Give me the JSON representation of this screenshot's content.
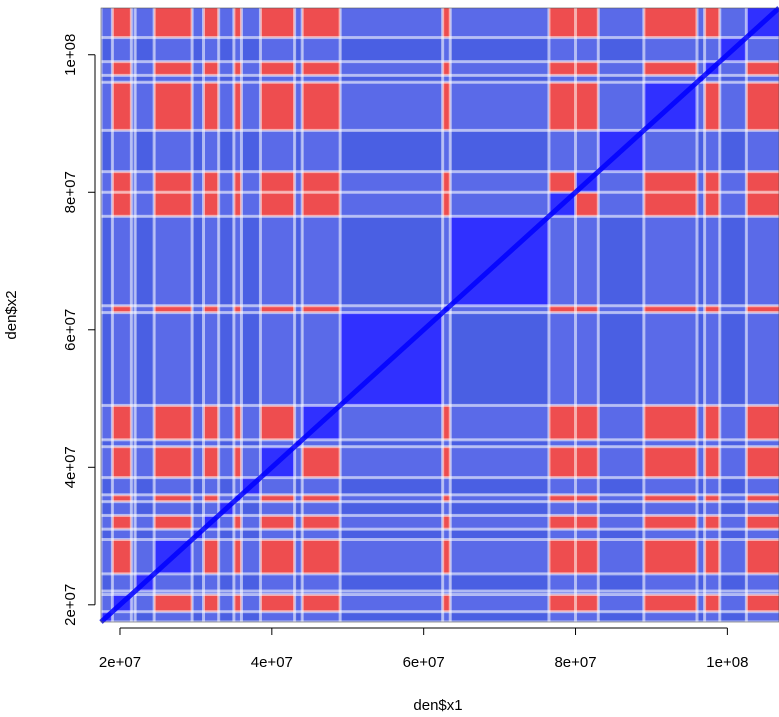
{
  "chart_data": {
    "type": "heatmap",
    "title": "",
    "xlabel": "den$x1",
    "ylabel": "den$x2",
    "xlim": [
      17500000,
      106800000
    ],
    "ylim": [
      17500000,
      106800000
    ],
    "x_ticks": [
      {
        "value": 20000000,
        "label": "2e+07"
      },
      {
        "value": 40000000,
        "label": "4e+07"
      },
      {
        "value": 60000000,
        "label": "6e+07"
      },
      {
        "value": 80000000,
        "label": "8e+07"
      },
      {
        "value": 100000000,
        "label": "1e+08"
      }
    ],
    "y_ticks": [
      {
        "value": 20000000,
        "label": "2e+07"
      },
      {
        "value": 40000000,
        "label": "4e+07"
      },
      {
        "value": 60000000,
        "label": "6e+07"
      },
      {
        "value": 80000000,
        "label": "8e+07"
      },
      {
        "value": 100000000,
        "label": "1e+08"
      }
    ],
    "color_low": "#0000ff",
    "color_mid": "#ffffff",
    "color_high": "#ff0000",
    "segments": [
      {
        "start": 17500000,
        "end": 19000000,
        "group": "B"
      },
      {
        "start": 19000000,
        "end": 21500000,
        "group": "A"
      },
      {
        "start": 21500000,
        "end": 22000000,
        "group": "B"
      },
      {
        "start": 22000000,
        "end": 24500000,
        "group": "B"
      },
      {
        "start": 24500000,
        "end": 29500000,
        "group": "A"
      },
      {
        "start": 29500000,
        "end": 31000000,
        "group": "B"
      },
      {
        "start": 31000000,
        "end": 33000000,
        "group": "A"
      },
      {
        "start": 33000000,
        "end": 35000000,
        "group": "B"
      },
      {
        "start": 35000000,
        "end": 36000000,
        "group": "A"
      },
      {
        "start": 36000000,
        "end": 38500000,
        "group": "B"
      },
      {
        "start": 38500000,
        "end": 43000000,
        "group": "A"
      },
      {
        "start": 43000000,
        "end": 44000000,
        "group": "B"
      },
      {
        "start": 44000000,
        "end": 49000000,
        "group": "A"
      },
      {
        "start": 49000000,
        "end": 62500000,
        "group": "B"
      },
      {
        "start": 62500000,
        "end": 63500000,
        "group": "A"
      },
      {
        "start": 63500000,
        "end": 76500000,
        "group": "B"
      },
      {
        "start": 76500000,
        "end": 80000000,
        "group": "A"
      },
      {
        "start": 80000000,
        "end": 83000000,
        "group": "A"
      },
      {
        "start": 83000000,
        "end": 89000000,
        "group": "B"
      },
      {
        "start": 89000000,
        "end": 96000000,
        "group": "A"
      },
      {
        "start": 96000000,
        "end": 97000000,
        "group": "B"
      },
      {
        "start": 97000000,
        "end": 99000000,
        "group": "A"
      },
      {
        "start": 99000000,
        "end": 102500000,
        "group": "B"
      },
      {
        "start": 102500000,
        "end": 106800000,
        "group": "A"
      }
    ]
  }
}
